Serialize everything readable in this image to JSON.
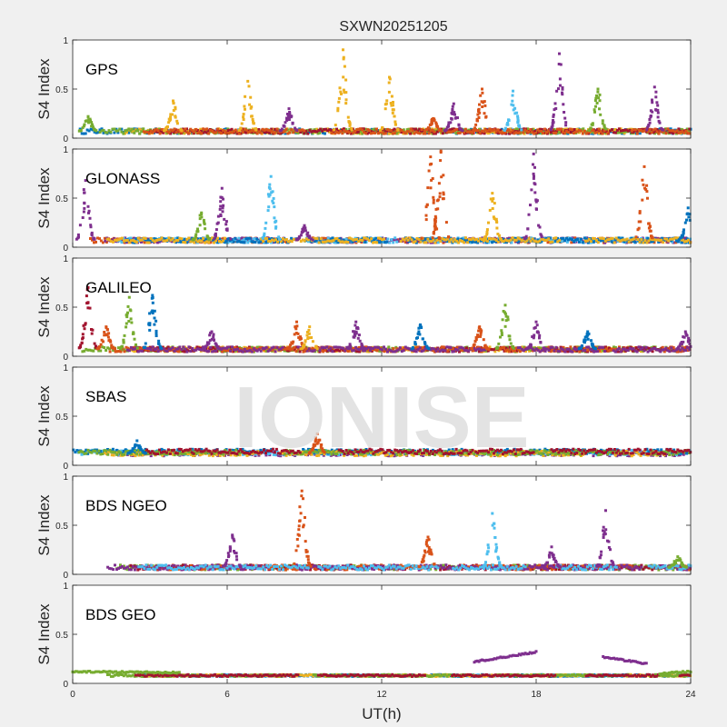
{
  "figure": {
    "title": "SXWN20251205",
    "xlabel": "UT(h)",
    "ylabel": "S4 Index",
    "watermark": "IONISE",
    "xlim": [
      0,
      24
    ],
    "ylim": [
      0,
      1
    ],
    "xticks": [
      0,
      6,
      12,
      18,
      24
    ],
    "yticks": [
      0,
      0.5,
      1
    ],
    "series_colors": [
      "#0072BD",
      "#D95319",
      "#EDB120",
      "#7E2F8E",
      "#77AC30",
      "#4DBEEE",
      "#A2142F"
    ],
    "watermark_color": "#dddddd"
  },
  "chart_data": [
    {
      "type": "scatter",
      "label": "GPS",
      "xlabel": "",
      "ylabel": "S4 Index",
      "xlim": [
        0,
        24
      ],
      "ylim": [
        0,
        1
      ],
      "baseline": 0.07,
      "spikes": [
        {
          "x": 0.6,
          "peak": 0.22,
          "color": 4
        },
        {
          "x": 3.9,
          "peak": 0.38,
          "color": 2
        },
        {
          "x": 6.8,
          "peak": 0.58,
          "color": 2
        },
        {
          "x": 8.4,
          "peak": 0.3,
          "color": 3
        },
        {
          "x": 10.5,
          "peak": 0.9,
          "color": 2
        },
        {
          "x": 12.3,
          "peak": 0.62,
          "color": 2
        },
        {
          "x": 14.8,
          "peak": 0.35,
          "color": 3
        },
        {
          "x": 15.9,
          "peak": 0.5,
          "color": 1
        },
        {
          "x": 17.1,
          "peak": 0.48,
          "color": 5
        },
        {
          "x": 18.9,
          "peak": 0.86,
          "color": 3
        },
        {
          "x": 20.4,
          "peak": 0.5,
          "color": 4
        },
        {
          "x": 22.6,
          "peak": 0.52,
          "color": 3
        },
        {
          "x": 14.0,
          "peak": 0.2,
          "color": 1
        }
      ]
    },
    {
      "type": "scatter",
      "label": "GLONASS",
      "xlabel": "",
      "ylabel": "S4 Index",
      "xlim": [
        0,
        24
      ],
      "ylim": [
        0,
        1
      ],
      "baseline": 0.07,
      "spikes": [
        {
          "x": 0.5,
          "peak": 0.68,
          "color": 3
        },
        {
          "x": 5.0,
          "peak": 0.35,
          "color": 4
        },
        {
          "x": 5.8,
          "peak": 0.6,
          "color": 3
        },
        {
          "x": 7.7,
          "peak": 0.72,
          "color": 5
        },
        {
          "x": 9.0,
          "peak": 0.22,
          "color": 3
        },
        {
          "x": 13.9,
          "peak": 0.92,
          "color": 1
        },
        {
          "x": 14.3,
          "peak": 0.98,
          "color": 1
        },
        {
          "x": 16.3,
          "peak": 0.55,
          "color": 2
        },
        {
          "x": 17.9,
          "peak": 0.95,
          "color": 3
        },
        {
          "x": 22.2,
          "peak": 0.82,
          "color": 1
        },
        {
          "x": 23.9,
          "peak": 0.4,
          "color": 0
        }
      ]
    },
    {
      "type": "scatter",
      "label": "GALILEO",
      "xlabel": "",
      "ylabel": "S4 Index",
      "xlim": [
        0,
        24
      ],
      "ylim": [
        0,
        1
      ],
      "baseline": 0.07,
      "spikes": [
        {
          "x": 0.6,
          "peak": 0.7,
          "color": 6
        },
        {
          "x": 1.3,
          "peak": 0.3,
          "color": 1
        },
        {
          "x": 2.2,
          "peak": 0.6,
          "color": 4
        },
        {
          "x": 3.1,
          "peak": 0.62,
          "color": 0
        },
        {
          "x": 5.4,
          "peak": 0.25,
          "color": 3
        },
        {
          "x": 8.7,
          "peak": 0.35,
          "color": 1
        },
        {
          "x": 9.2,
          "peak": 0.3,
          "color": 2
        },
        {
          "x": 11.0,
          "peak": 0.35,
          "color": 3
        },
        {
          "x": 13.5,
          "peak": 0.32,
          "color": 0
        },
        {
          "x": 15.8,
          "peak": 0.3,
          "color": 1
        },
        {
          "x": 16.8,
          "peak": 0.52,
          "color": 4
        },
        {
          "x": 18.0,
          "peak": 0.35,
          "color": 3
        },
        {
          "x": 20.0,
          "peak": 0.25,
          "color": 0
        },
        {
          "x": 23.8,
          "peak": 0.25,
          "color": 3
        }
      ]
    },
    {
      "type": "scatter",
      "label": "SBAS",
      "xlabel": "",
      "ylabel": "S4 Index",
      "xlim": [
        0,
        24
      ],
      "ylim": [
        0,
        1
      ],
      "baseline": 0.12,
      "spikes": [
        {
          "x": 9.5,
          "peak": 0.32,
          "color": 1
        },
        {
          "x": 2.5,
          "peak": 0.25,
          "color": 0
        }
      ]
    },
    {
      "type": "scatter",
      "label": "BDS NGEO",
      "xlabel": "",
      "ylabel": "S4 Index",
      "xlim": [
        0,
        24
      ],
      "ylim": [
        0,
        1
      ],
      "baseline": 0.07,
      "spikes": [
        {
          "x": 6.2,
          "peak": 0.4,
          "color": 3
        },
        {
          "x": 8.9,
          "peak": 0.85,
          "color": 1
        },
        {
          "x": 13.8,
          "peak": 0.38,
          "color": 1
        },
        {
          "x": 16.3,
          "peak": 0.62,
          "color": 5
        },
        {
          "x": 18.6,
          "peak": 0.28,
          "color": 3
        },
        {
          "x": 20.7,
          "peak": 0.65,
          "color": 3
        },
        {
          "x": 23.5,
          "peak": 0.18,
          "color": 4
        }
      ]
    },
    {
      "type": "scatter",
      "label": "BDS GEO",
      "xlabel": "",
      "ylabel": "S4 Index",
      "xlim": [
        0,
        24
      ],
      "ylim": [
        0,
        1
      ],
      "baseline": 0.08,
      "spikes": [],
      "tracks": [
        {
          "x0": 0.0,
          "x1": 4.2,
          "y0": 0.12,
          "y1": 0.11,
          "color": 4
        },
        {
          "x0": 15.6,
          "x1": 18.0,
          "y0": 0.22,
          "y1": 0.32,
          "color": 3
        },
        {
          "x0": 20.6,
          "x1": 22.3,
          "y0": 0.27,
          "y1": 0.2,
          "color": 3
        },
        {
          "x0": 22.8,
          "x1": 24.0,
          "y0": 0.1,
          "y1": 0.12,
          "color": 4
        }
      ]
    }
  ]
}
